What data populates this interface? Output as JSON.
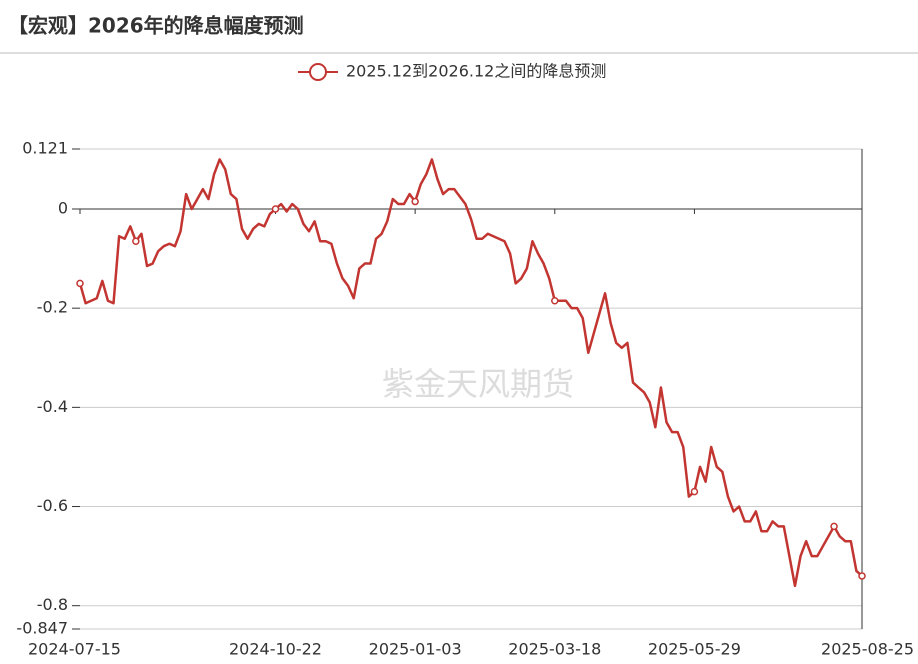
{
  "chart_data": {
    "type": "line",
    "title": "【宏观】2026年的降息幅度预测",
    "watermark": "紫金天风期货",
    "categories": [
      "2024-07-15",
      null,
      null,
      null,
      null,
      null,
      null,
      null,
      null,
      null,
      null,
      null,
      null,
      null,
      null,
      null,
      null,
      null,
      null,
      null,
      null,
      null,
      null,
      null,
      null,
      null,
      null,
      null,
      null,
      null,
      null,
      null,
      null,
      null,
      null,
      "2024-10-22",
      null,
      null,
      null,
      null,
      null,
      null,
      null,
      null,
      null,
      null,
      null,
      null,
      null,
      null,
      null,
      null,
      null,
      null,
      null,
      null,
      null,
      null,
      null,
      null,
      "2025-01-03",
      null,
      null,
      null,
      null,
      null,
      null,
      null,
      null,
      null,
      null,
      null,
      null,
      null,
      null,
      null,
      null,
      null,
      null,
      null,
      null,
      null,
      null,
      null,
      null,
      "2025-03-18",
      null,
      null,
      null,
      null,
      null,
      null,
      null,
      null,
      null,
      null,
      null,
      null,
      null,
      null,
      null,
      null,
      null,
      null,
      null,
      null,
      null,
      null,
      null,
      null,
      "2025-05-29",
      null,
      null,
      null,
      null,
      null,
      null,
      null,
      null,
      null,
      null,
      null,
      null,
      null,
      null,
      null,
      null,
      null,
      null,
      null,
      null,
      null,
      null,
      null,
      null,
      null,
      null,
      null,
      null,
      null,
      "2025-08-25"
    ],
    "series": [
      {
        "name": "2025.12到2026.12之间的降息预测",
        "color": "#c23531",
        "values": [
          -0.15,
          -0.19,
          -0.185,
          -0.18,
          -0.145,
          -0.185,
          -0.19,
          -0.055,
          -0.06,
          -0.035,
          -0.065,
          -0.05,
          -0.115,
          -0.11,
          -0.085,
          -0.075,
          -0.07,
          -0.075,
          -0.045,
          0.03,
          0.0,
          0.02,
          0.04,
          0.02,
          0.07,
          0.1,
          0.08,
          0.03,
          0.02,
          -0.04,
          -0.06,
          -0.04,
          -0.03,
          -0.035,
          -0.01,
          0.0,
          0.01,
          -0.005,
          0.01,
          0.0,
          -0.03,
          -0.045,
          -0.025,
          -0.065,
          -0.065,
          -0.07,
          -0.11,
          -0.14,
          -0.155,
          -0.18,
          -0.12,
          -0.11,
          -0.11,
          -0.06,
          -0.05,
          -0.025,
          0.02,
          0.01,
          0.01,
          0.03,
          0.015,
          0.05,
          0.07,
          0.1,
          0.06,
          0.03,
          0.04,
          0.04,
          0.025,
          0.01,
          -0.02,
          -0.06,
          -0.06,
          -0.05,
          -0.055,
          -0.06,
          -0.065,
          -0.09,
          -0.15,
          -0.14,
          -0.12,
          -0.065,
          -0.09,
          -0.11,
          -0.14,
          -0.185,
          -0.185,
          -0.185,
          -0.2,
          -0.2,
          -0.22,
          -0.29,
          -0.25,
          -0.21,
          -0.17,
          -0.23,
          -0.27,
          -0.28,
          -0.27,
          -0.35,
          -0.36,
          -0.37,
          -0.39,
          -0.44,
          -0.36,
          -0.43,
          -0.45,
          -0.45,
          -0.48,
          -0.58,
          -0.57,
          -0.52,
          -0.55,
          -0.48,
          -0.52,
          -0.53,
          -0.58,
          -0.61,
          -0.6,
          -0.63,
          -0.63,
          -0.61,
          -0.65,
          -0.65,
          -0.63,
          -0.64,
          -0.64,
          -0.7,
          -0.76,
          -0.7,
          -0.67,
          -0.7,
          -0.7,
          -0.68,
          -0.66,
          -0.64,
          -0.66,
          -0.67,
          -0.67,
          -0.73,
          -0.74
        ]
      }
    ],
    "ylim": [
      -0.847,
      0.121
    ],
    "yticks": [
      0.121,
      0,
      -0.2,
      -0.4,
      -0.6,
      -0.8,
      -0.847
    ],
    "grid": true
  }
}
